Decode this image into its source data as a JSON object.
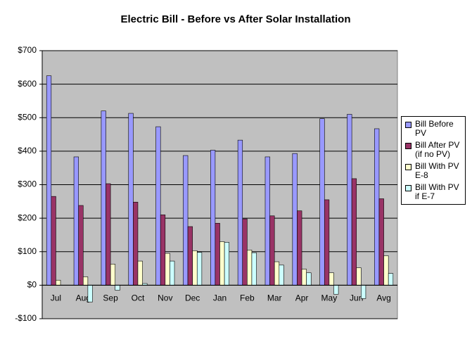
{
  "chart_data": {
    "type": "bar",
    "title": "Electric Bill  - Before vs After Solar Installation",
    "categories": [
      "Jul",
      "Aug",
      "Sep",
      "Oct",
      "Nov",
      "Dec",
      "Jan",
      "Feb",
      "Mar",
      "Apr",
      "May",
      "Jun",
      "Avg"
    ],
    "series": [
      {
        "name": "Bill Before PV",
        "color": "#9999ff",
        "values": [
          625,
          383,
          520,
          513,
          473,
          387,
          403,
          433,
          383,
          393,
          497,
          510,
          467
        ]
      },
      {
        "name": "Bill After PV (if no PV)",
        "color": "#993366",
        "values": [
          265,
          238,
          303,
          248,
          210,
          175,
          185,
          198,
          207,
          222,
          255,
          318,
          258
        ]
      },
      {
        "name": "Bill With PV E-8",
        "color": "#ffffcc",
        "values": [
          15,
          25,
          63,
          72,
          95,
          103,
          130,
          105,
          70,
          48,
          37,
          52,
          88
        ]
      },
      {
        "name": "Bill With PV if E-7",
        "color": "#ccffff",
        "values": [
          0,
          -50,
          -15,
          5,
          72,
          98,
          128,
          97,
          60,
          37,
          -27,
          -40,
          35
        ]
      }
    ],
    "ylim": [
      -100,
      700
    ],
    "yticks": [
      {
        "value": -100,
        "label": "-$100"
      },
      {
        "value": 0,
        "label": "$0"
      },
      {
        "value": 100,
        "label": "$100"
      },
      {
        "value": 200,
        "label": "$200"
      },
      {
        "value": 300,
        "label": "$300"
      },
      {
        "value": 400,
        "label": "$400"
      },
      {
        "value": 500,
        "label": "$500"
      },
      {
        "value": 600,
        "label": "$600"
      },
      {
        "value": 700,
        "label": "$700"
      }
    ],
    "grid": true,
    "legend": "right",
    "plot_background": "#c0c0c0"
  }
}
